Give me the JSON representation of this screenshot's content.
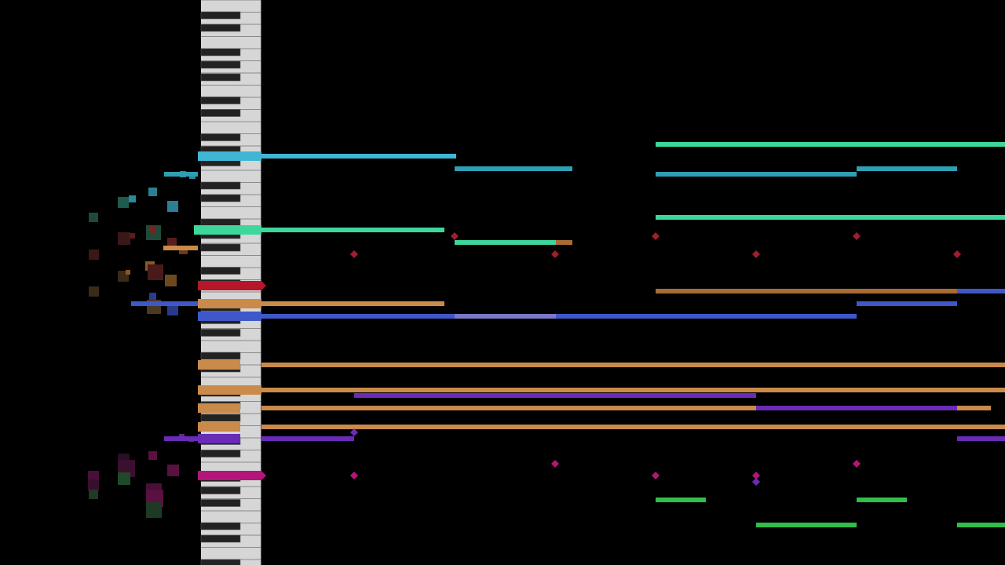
{
  "view": {
    "type": "midi-piano-roll-visualizer",
    "background": "#000000",
    "orientation": "horizontal-keyboard-left"
  },
  "palette": {
    "cyan": "#3fb6d4",
    "teal": "#2f9fb3",
    "mint": "#3dd69b",
    "green": "#2fbf4a",
    "orange": "#c98a4a",
    "brown": "#a96b34",
    "blue": "#3f58c9",
    "lavender": "#7a78c7",
    "purple": "#6a2cb6",
    "magenta": "#b3157a",
    "red": "#b5162a",
    "darkred": "#9f1f2e"
  },
  "keyboard": {
    "white_key_color": "#d6d6d6",
    "black_key_color": "#222222",
    "highlighted_keys": [
      {
        "name": "cyan",
        "pressed": true
      },
      {
        "name": "mint",
        "pressed": true
      },
      {
        "name": "red",
        "pressed": true
      },
      {
        "name": "orange",
        "pressed": true
      },
      {
        "name": "blue",
        "pressed": true
      },
      {
        "name": "orange",
        "pressed": true
      },
      {
        "name": "orange",
        "pressed": true
      },
      {
        "name": "orange",
        "pressed": true
      },
      {
        "name": "orange",
        "pressed": true
      },
      {
        "name": "purple",
        "pressed": true
      },
      {
        "name": "magenta",
        "pressed": true
      }
    ]
  }
}
